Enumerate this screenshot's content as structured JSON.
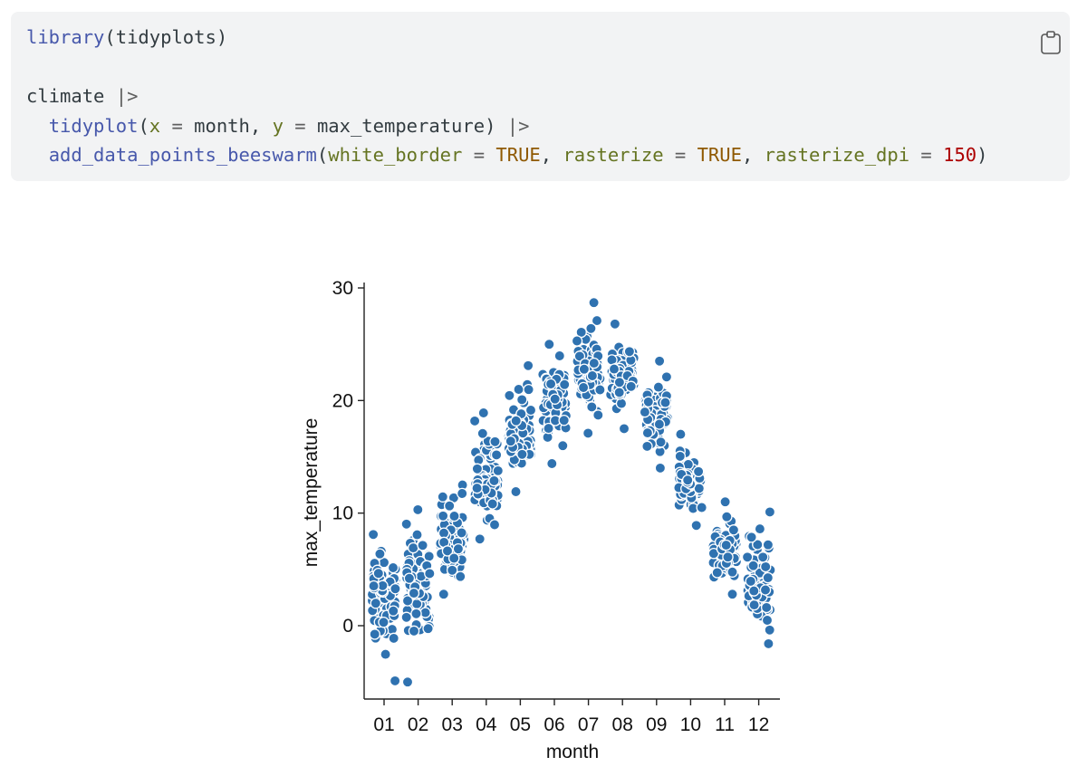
{
  "code": {
    "lines": [
      [
        {
          "t": "library",
          "c": "fn"
        },
        {
          "t": "(tidyplots)",
          "c": "plain"
        }
      ],
      [],
      [
        {
          "t": "climate ",
          "c": "plain"
        },
        {
          "t": "|>",
          "c": "op"
        }
      ],
      [
        {
          "t": "  ",
          "c": "plain"
        },
        {
          "t": "tidyplot",
          "c": "fn"
        },
        {
          "t": "(",
          "c": "plain"
        },
        {
          "t": "x",
          "c": "arg"
        },
        {
          "t": " = ",
          "c": "op"
        },
        {
          "t": "month, ",
          "c": "plain"
        },
        {
          "t": "y",
          "c": "arg"
        },
        {
          "t": " = ",
          "c": "op"
        },
        {
          "t": "max_temperature) ",
          "c": "plain"
        },
        {
          "t": "|>",
          "c": "op"
        }
      ],
      [
        {
          "t": "  ",
          "c": "plain"
        },
        {
          "t": "add_data_points_beeswarm",
          "c": "fn"
        },
        {
          "t": "(",
          "c": "plain"
        },
        {
          "t": "white_border",
          "c": "arg"
        },
        {
          "t": " = ",
          "c": "op"
        },
        {
          "t": "TRUE",
          "c": "bool"
        },
        {
          "t": ", ",
          "c": "plain"
        },
        {
          "t": "rasterize",
          "c": "arg"
        },
        {
          "t": " = ",
          "c": "op"
        },
        {
          "t": "TRUE",
          "c": "bool"
        },
        {
          "t": ", ",
          "c": "plain"
        },
        {
          "t": "rasterize_dpi",
          "c": "arg"
        },
        {
          "t": " = ",
          "c": "op"
        },
        {
          "t": "150",
          "c": "num"
        },
        {
          "t": ")",
          "c": "plain"
        }
      ]
    ],
    "copy_icon": "clipboard-icon"
  },
  "colors": {
    "code_bg": "#f2f3f4",
    "point_fill": "#2f72b0",
    "point_border": "#ffffff"
  },
  "chart_data": {
    "type": "scatter",
    "subtype": "beeswarm",
    "xlabel": "month",
    "ylabel": "max_temperature",
    "categories": [
      "01",
      "02",
      "03",
      "04",
      "05",
      "06",
      "07",
      "08",
      "09",
      "10",
      "11",
      "12"
    ],
    "ylim": [
      -6,
      30.5
    ],
    "yticks": [
      0,
      10,
      20,
      30
    ],
    "grid": false,
    "legend": "none",
    "series": [
      {
        "values": [
          {
            "month": "01",
            "min": -4.9,
            "max": 8.1,
            "center": 3.0
          },
          {
            "month": "02",
            "min": -5.0,
            "max": 10.3,
            "center": 3.5
          },
          {
            "month": "03",
            "min": 2.8,
            "max": 12.5,
            "center": 7.2
          },
          {
            "month": "04",
            "min": 7.7,
            "max": 18.9,
            "center": 12.5
          },
          {
            "month": "05",
            "min": 11.9,
            "max": 23.1,
            "center": 17.0
          },
          {
            "month": "06",
            "min": 14.4,
            "max": 25.0,
            "center": 20.5
          },
          {
            "month": "07",
            "min": 17.1,
            "max": 28.7,
            "center": 22.0
          },
          {
            "month": "08",
            "min": 17.5,
            "max": 26.8,
            "center": 22.0
          },
          {
            "month": "09",
            "min": 14.0,
            "max": 23.5,
            "center": 19.0
          },
          {
            "month": "10",
            "min": 8.9,
            "max": 17.0,
            "center": 13.0
          },
          {
            "month": "11",
            "min": 2.8,
            "max": 11.0,
            "center": 7.0
          },
          {
            "month": "12",
            "min": -1.6,
            "max": 10.1,
            "center": 3.5
          }
        ]
      }
    ]
  }
}
